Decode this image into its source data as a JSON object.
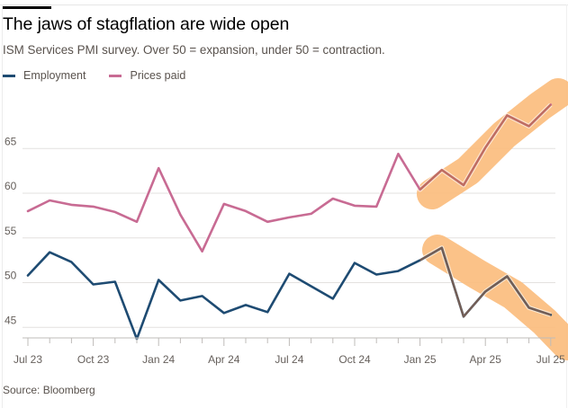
{
  "header": {
    "title": "The jaws of stagflation are wide open",
    "subtitle": "ISM Services PMI survey. Over 50 = expansion, under 50 = contraction."
  },
  "legend": [
    {
      "label": "Employment",
      "color": "#1e4b72"
    },
    {
      "label": "Prices paid",
      "color": "#c86b93"
    }
  ],
  "footer": {
    "source": "Source: Bloomberg"
  },
  "colors": {
    "highlight": "#fbbd7e",
    "line_on_highlight": "#b9703f",
    "grid": "#e3e1df",
    "axis": "#bfbcb9"
  },
  "chart_data": {
    "type": "line",
    "title": "The jaws of stagflation are wide open",
    "subtitle": "ISM Services PMI survey. Over 50 = expansion, under 50 = contraction.",
    "xlabel": "",
    "ylabel": "",
    "x": [
      "Jul 23",
      "Aug 23",
      "Sep 23",
      "Oct 23",
      "Nov 23",
      "Dec 23",
      "Jan 24",
      "Feb 24",
      "Mar 24",
      "Apr 24",
      "May 24",
      "Jun 24",
      "Jul 24",
      "Aug 24",
      "Sep 24",
      "Oct 24",
      "Nov 24",
      "Dec 24",
      "Jan 25",
      "Feb 25",
      "Mar 25",
      "Apr 25",
      "May 25",
      "Jun 25",
      "Jul 25"
    ],
    "x_tick_labels": [
      "Jul 23",
      "Oct 23",
      "Jan 24",
      "Apr 24",
      "Jul 24",
      "Oct 24",
      "Jan 25",
      "Apr 25",
      "Jul 25"
    ],
    "y_ticks": [
      45,
      50,
      55,
      60,
      65
    ],
    "ylim": [
      43.2,
      71
    ],
    "grid": true,
    "legend_position": "top-left",
    "series": [
      {
        "name": "Employment",
        "color": "#1e4b72",
        "values": [
          50.8,
          53.4,
          52.3,
          49.8,
          50.1,
          43.7,
          50.3,
          48.0,
          48.5,
          46.6,
          47.5,
          46.7,
          51.0,
          49.6,
          48.2,
          52.2,
          50.9,
          51.3,
          52.5,
          53.9,
          46.2,
          49.0,
          50.7,
          47.2,
          46.4
        ]
      },
      {
        "name": "Prices paid",
        "color": "#c86b93",
        "values": [
          58.0,
          59.2,
          58.7,
          58.5,
          57.9,
          56.8,
          62.8,
          57.6,
          53.5,
          58.8,
          58.0,
          56.8,
          57.3,
          57.7,
          59.4,
          58.6,
          58.5,
          64.4,
          60.4,
          62.6,
          60.9,
          65.1,
          68.7,
          67.5,
          69.9
        ]
      }
    ],
    "annotations": [
      {
        "type": "highlight-band",
        "series": "Prices paid",
        "from": "Jan 25",
        "to": "Jul 25",
        "direction": "rising"
      },
      {
        "type": "highlight-band",
        "series": "Employment",
        "from": "Feb 25",
        "to": "Jul 25",
        "direction": "falling"
      }
    ]
  }
}
